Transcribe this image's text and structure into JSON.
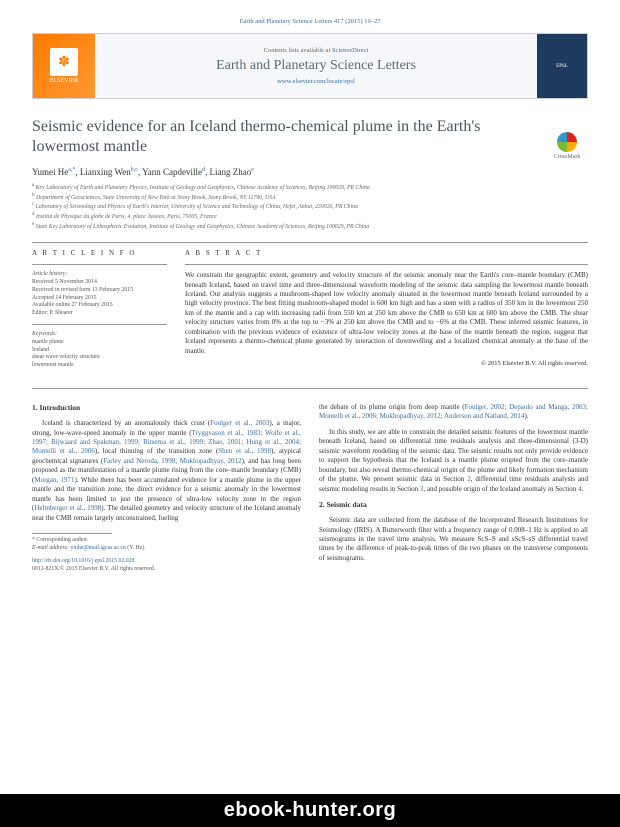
{
  "header": {
    "citation": "Earth and Planetary Science Letters 417 (2015) 19–27",
    "contents_prefix": "Contents lists available at ",
    "contents_link": "ScienceDirect",
    "journal_name": "Earth and Planetary Science Letters",
    "journal_url": "www.elsevier.com/locate/epsl",
    "publisher": "ELSEVIER",
    "crossmark": "CrossMark"
  },
  "article": {
    "title": "Seismic evidence for an Iceland thermo-chemical plume in the Earth's lowermost mantle",
    "authors_html": "Yumei He<sup>a,*</sup>, Lianxing Wen<sup>b,c</sup>, Yann Capdeville<sup>d</sup>, Liang Zhao<sup>e</sup>",
    "affiliations": [
      "a Key Laboratory of Earth and Planetary Physics, Institute of Geology and Geophysics, Chinese Academy of Sciences, Beijing 100029, PR China",
      "b Department of Geosciences, State University of New York at Stony Brook, Stony Brook, NY 11790, USA",
      "c Laboratory of Seismology and Physics of Earth's Interior, University of Science and Technology of China, Hefei, Anhui, 230026, PR China",
      "d Institut de Physique du globe de Paris, 4, place Jussieu, Paris, 75005, France",
      "e State Key Laboratory of Lithospheric Evolution, Institute of Geology and Geophysics, Chinese Academy of Sciences, Beijing 100029, PR China"
    ]
  },
  "info": {
    "heading": "A R T I C L E   I N F O",
    "history_label": "Article history:",
    "history": [
      "Received 5 November 2014",
      "Received in revised form 13 February 2015",
      "Accepted 14 February 2015",
      "Available online 27 February 2015",
      "Editor: P. Shearer"
    ],
    "keywords_label": "Keywords:",
    "keywords": [
      "mantle plume",
      "Iceland",
      "shear wave velocity structure",
      "lowermost mantle"
    ]
  },
  "abstract": {
    "heading": "A B S T R A C T",
    "body": "We constrain the geographic extent, geometry and velocity structure of the seismic anomaly near the Earth's core–mantle boundary (CMB) beneath Iceland, based on travel time and three-dimensional waveform modeling of the seismic data sampling the lowermost mantle beneath Iceland. Our analysis suggests a mushroom-shaped low velocity anomaly situated in the lowermost mantle beneath Iceland surrounded by a high velocity province. The best fitting mushroom-shaped model is 600 km high and has a stem with a radius of 350 km in the lowermost 250 km of the mantle and a cap with increasing radii from 550 km at 250 km above the CMB to 650 km at 600 km above the CMB. The shear velocity structure varies from 0% at the top to −3% at 250 km above the CMB and to −6% at the CMB. These inferred seismic features, in combination with the previous evidence of existence of ultra-low velocity zones at the base of the mantle beneath the region, suggest that Iceland represents a thermo-chemical plume generated by interaction of downwelling and a localized chemical anomaly at the base of the mantle.",
    "copyright": "© 2015 Elsevier B.V. All rights reserved."
  },
  "body": {
    "section1_heading": "1. Introduction",
    "section1_p1": "Iceland is characterized by an anomalously thick crust (Foulger et al., 2003), a major, strong, low-wave-speed anomaly in the upper mantle (Tryggvason et al., 1983; Wolfe et al., 1997; Bijwaard and Spakman, 1999; Ritsema et al., 1999; Zhao, 2001; Hung et al., 2004; Montelli et al., 2006), local thinning of the transition zone (Shen et al., 1998), atypical geochemical signatures (Farley and Neroda, 1998; Mukhopadhyay, 2012), and has long been proposed as the manifestation of a mantle plume rising from the core–mantle boundary (CMB) (Morgan, 1971). While there has been accumulated evidence for a mantle plume in the upper mantle and the transition zone, the direct evidence for a seismic anomaly in the lowermost mantle has been limited to just the presence of ultra-low velocity zone in the region (Helmberger et al., 1998). The detailed geometry and velocity structure of the Iceland anomaly near the CMB remain largely unconstrained, fueling",
    "section1_p2": "the debate of its plume origin from deep mantle (Foulger, 2002; Depaolo and Manga, 2003; Montelli et al., 2006; Mukhopadhyay, 2012; Anderson and Natland, 2014).",
    "section1_p3": "In this study, we are able to constrain the detailed seismic features of the lowermost mantle beneath Iceland, based on differential time residuals analysis and three-dimensional (3-D) seismic waveform modeling of the seismic data. The seismic results not only provide evidence to support the hypothesis that the Iceland is a mantle plume erupted from the core–mantle boundary, but also reveal thermo-chemical origin of the plume and likely formation mechanism of the plume. We present seismic data in Section 2, differential time residuals analysis and seismic modeling results in Section 3, and possible origin of the Iceland anomaly in Section 4.",
    "section2_heading": "2. Seismic data",
    "section2_p1": "Seismic data are collected from the database of the Incorporated Research Institutions for Seismology (IRIS). A Butterworth filter with a frequency range of 0.008–1 Hz is applied to all seismograms in the travel time analysis. We measure ScS–S and sScS–sS differential travel times by the difference of peak-to-peak times of the two phases on the transverse components of seismograms."
  },
  "footnote": {
    "corr": "* Corresponding author.",
    "email_label": "E-mail address: ",
    "email": "ymhe@mail.igcas.ac.cn",
    "email_who": " (Y. He).",
    "doi": "http://dx.doi.org/10.1016/j.epsl.2015.02.028",
    "rights": "0012-821X/© 2015 Elsevier B.V. All rights reserved."
  },
  "watermark": "ebook-hunter.org"
}
